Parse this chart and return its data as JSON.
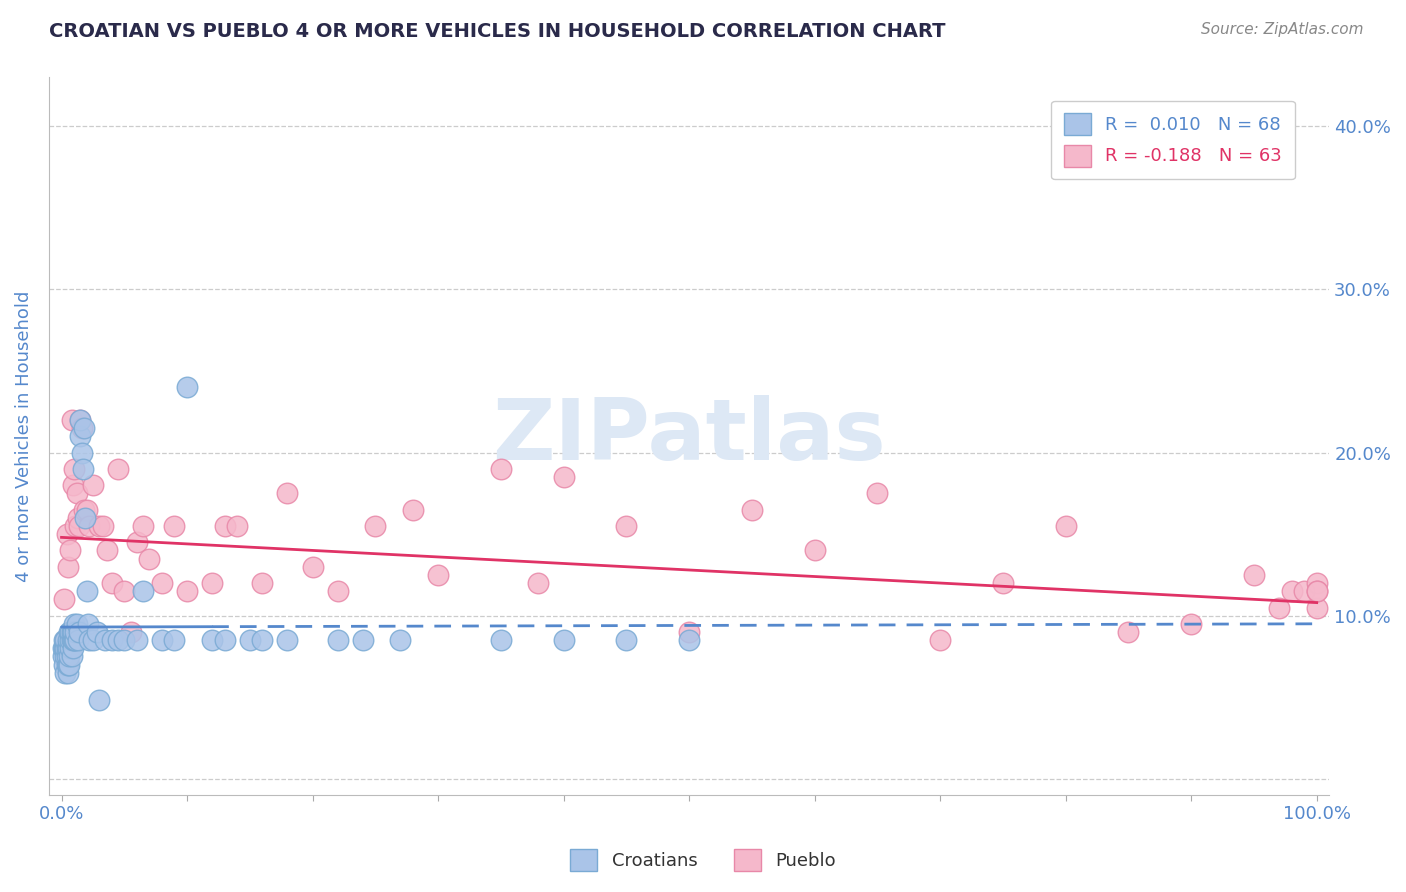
{
  "title": "CROATIAN VS PUEBLO 4 OR MORE VEHICLES IN HOUSEHOLD CORRELATION CHART",
  "source": "Source: ZipAtlas.com",
  "ylabel": "4 or more Vehicles in Household",
  "xlim": [
    -0.01,
    1.01
  ],
  "ylim": [
    -0.01,
    0.43
  ],
  "xtick_pos": [
    0.0,
    0.1,
    0.2,
    0.3,
    0.4,
    0.5,
    0.6,
    0.7,
    0.8,
    0.9,
    1.0
  ],
  "xtick_labels": [
    "0.0%",
    "",
    "",
    "",
    "",
    "",
    "",
    "",
    "",
    "",
    "100.0%"
  ],
  "ytick_pos": [
    0.0,
    0.1,
    0.2,
    0.3,
    0.4
  ],
  "ytick_labels_left": [
    "",
    "",
    "",
    "",
    ""
  ],
  "ytick_labels_right": [
    "",
    "10.0%",
    "20.0%",
    "30.0%",
    "40.0%"
  ],
  "legend_line1": "R =  0.010   N = 68",
  "legend_line2": "R = -0.188   N = 63",
  "croatians_color": "#aac4e8",
  "pueblo_color": "#f5b8cb",
  "croatians_edge": "#7aaad4",
  "pueblo_edge": "#e888a8",
  "line_croatians_color": "#5588cc",
  "line_pueblo_color": "#e03366",
  "watermark_text": "ZIPatlas",
  "watermark_color": "#dde8f5",
  "background_color": "#ffffff",
  "grid_color": "#cccccc",
  "title_color": "#2a2a4a",
  "tick_label_color_blue": "#5588cc",
  "tick_label_color_pink": "#e03366",
  "legend_color_r": "#5588cc",
  "legend_color_r2": "#e03366",
  "source_color": "#888888",
  "ylabel_color": "#5588cc",
  "croatians_x": [
    0.001,
    0.001,
    0.002,
    0.002,
    0.002,
    0.003,
    0.003,
    0.003,
    0.003,
    0.004,
    0.004,
    0.004,
    0.005,
    0.005,
    0.005,
    0.005,
    0.006,
    0.006,
    0.006,
    0.007,
    0.007,
    0.007,
    0.008,
    0.008,
    0.008,
    0.009,
    0.009,
    0.009,
    0.01,
    0.01,
    0.011,
    0.011,
    0.012,
    0.013,
    0.014,
    0.015,
    0.015,
    0.016,
    0.017,
    0.018,
    0.019,
    0.02,
    0.021,
    0.022,
    0.025,
    0.028,
    0.03,
    0.035,
    0.04,
    0.045,
    0.05,
    0.06,
    0.065,
    0.08,
    0.09,
    0.1,
    0.12,
    0.13,
    0.15,
    0.16,
    0.18,
    0.22,
    0.24,
    0.27,
    0.35,
    0.4,
    0.45,
    0.5
  ],
  "croatians_y": [
    0.075,
    0.08,
    0.07,
    0.08,
    0.085,
    0.065,
    0.075,
    0.08,
    0.085,
    0.07,
    0.075,
    0.08,
    0.065,
    0.07,
    0.08,
    0.085,
    0.07,
    0.075,
    0.09,
    0.08,
    0.085,
    0.09,
    0.075,
    0.085,
    0.09,
    0.08,
    0.085,
    0.09,
    0.085,
    0.095,
    0.085,
    0.09,
    0.095,
    0.085,
    0.09,
    0.21,
    0.22,
    0.2,
    0.19,
    0.215,
    0.16,
    0.115,
    0.095,
    0.085,
    0.085,
    0.09,
    0.048,
    0.085,
    0.085,
    0.085,
    0.085,
    0.085,
    0.115,
    0.085,
    0.085,
    0.24,
    0.085,
    0.085,
    0.085,
    0.085,
    0.085,
    0.085,
    0.085,
    0.085,
    0.085,
    0.085,
    0.085,
    0.085
  ],
  "pueblo_x": [
    0.002,
    0.003,
    0.004,
    0.005,
    0.006,
    0.007,
    0.008,
    0.009,
    0.01,
    0.011,
    0.012,
    0.013,
    0.014,
    0.015,
    0.016,
    0.018,
    0.02,
    0.022,
    0.025,
    0.03,
    0.033,
    0.036,
    0.04,
    0.045,
    0.05,
    0.055,
    0.06,
    0.065,
    0.07,
    0.08,
    0.09,
    0.1,
    0.12,
    0.13,
    0.14,
    0.16,
    0.18,
    0.2,
    0.22,
    0.25,
    0.28,
    0.3,
    0.35,
    0.38,
    0.4,
    0.45,
    0.5,
    0.55,
    0.6,
    0.65,
    0.7,
    0.75,
    0.8,
    0.85,
    0.9,
    0.95,
    0.97,
    0.98,
    0.99,
    1.0,
    1.0,
    1.0,
    1.0
  ],
  "pueblo_y": [
    0.11,
    0.085,
    0.15,
    0.13,
    0.085,
    0.14,
    0.22,
    0.18,
    0.19,
    0.155,
    0.175,
    0.16,
    0.155,
    0.22,
    0.215,
    0.165,
    0.165,
    0.155,
    0.18,
    0.155,
    0.155,
    0.14,
    0.12,
    0.19,
    0.115,
    0.09,
    0.145,
    0.155,
    0.135,
    0.12,
    0.155,
    0.115,
    0.12,
    0.155,
    0.155,
    0.12,
    0.175,
    0.13,
    0.115,
    0.155,
    0.165,
    0.125,
    0.19,
    0.12,
    0.185,
    0.155,
    0.09,
    0.165,
    0.14,
    0.175,
    0.085,
    0.12,
    0.155,
    0.09,
    0.095,
    0.125,
    0.105,
    0.115,
    0.115,
    0.12,
    0.105,
    0.115,
    0.115
  ],
  "line_c_x0": 0.0,
  "line_c_x1": 1.0,
  "line_c_y0": 0.093,
  "line_c_y1": 0.095,
  "line_p_x0": 0.0,
  "line_p_x1": 1.0,
  "line_p_y0": 0.148,
  "line_p_y1": 0.108,
  "line_c_solid_end": 0.12,
  "line_c_dashed_start": 0.12
}
